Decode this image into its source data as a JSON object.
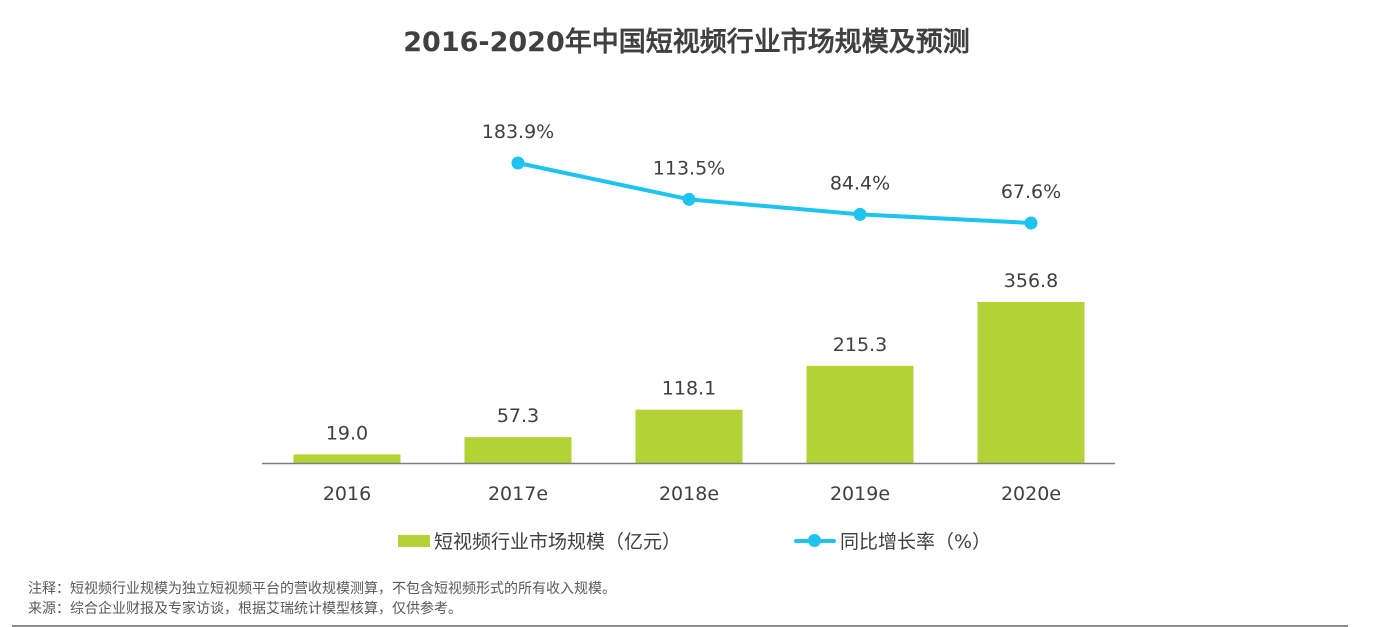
{
  "chart_data": {
    "type": "bar+line",
    "title": "2016-2020年中国短视频行业市场规模及预测",
    "categories": [
      "2016",
      "2017e",
      "2018e",
      "2019e",
      "2020e"
    ],
    "series": [
      {
        "name": "短视频行业市场规模（亿元）",
        "type": "bar",
        "color": "#b2d235",
        "values": [
          19.0,
          57.3,
          118.1,
          215.3,
          356.8
        ],
        "labels": [
          "19.0",
          "57.3",
          "118.1",
          "215.3",
          "356.8"
        ]
      },
      {
        "name": "同比增长率（%）",
        "type": "line",
        "color": "#1fc3ef",
        "values": [
          null,
          183.9,
          113.5,
          84.4,
          67.6
        ],
        "labels": [
          "",
          "183.9%",
          "113.5%",
          "84.4%",
          "67.6%"
        ]
      }
    ],
    "xlabel": "",
    "ylabel": "",
    "grid": false,
    "legend_position": "bottom"
  },
  "legend": {
    "bar_label": "短视频行业市场规模（亿元）",
    "line_label": "同比增长率（%）"
  },
  "notes": {
    "note": "注释：短视频行业规模为独立短视频平台的营收规模测算，不包含短视频形式的所有收入规模。",
    "source": "来源：综合企业财报及专家访谈，根据艾瑞统计模型核算，仅供参考。"
  }
}
